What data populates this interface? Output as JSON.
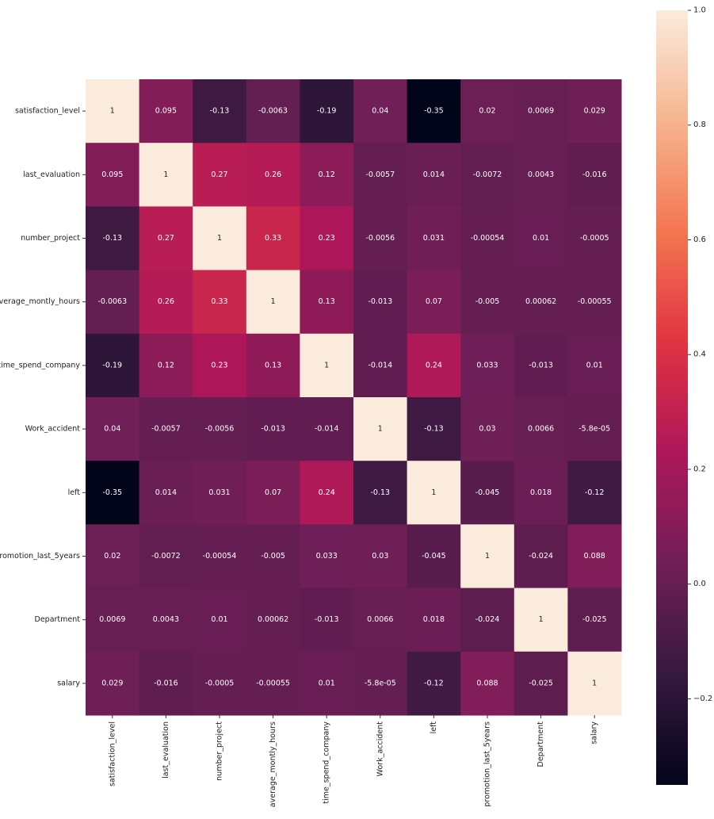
{
  "chart_data": {
    "type": "heatmap",
    "title": "",
    "labels": [
      "satisfaction_level",
      "last_evaluation",
      "number_project",
      "average_montly_hours",
      "time_spend_company",
      "Work_accident",
      "left",
      "promotion_last_5years",
      "Department",
      "salary"
    ],
    "values": [
      [
        1,
        0.095,
        -0.13,
        -0.0063,
        -0.19,
        0.04,
        -0.35,
        0.02,
        0.0069,
        0.029
      ],
      [
        0.095,
        1,
        0.27,
        0.26,
        0.12,
        -0.0057,
        0.014,
        -0.0072,
        0.0043,
        -0.016
      ],
      [
        -0.13,
        0.27,
        1,
        0.33,
        0.23,
        -0.0056,
        0.031,
        -0.00054,
        0.01,
        -0.0005
      ],
      [
        -0.0063,
        0.26,
        0.33,
        1,
        0.13,
        -0.013,
        0.07,
        -0.005,
        0.00062,
        -0.00055
      ],
      [
        -0.19,
        0.12,
        0.23,
        0.13,
        1,
        -0.014,
        0.24,
        0.033,
        -0.013,
        0.01
      ],
      [
        0.04,
        -0.0057,
        -0.0056,
        -0.013,
        -0.014,
        1,
        -0.13,
        0.03,
        0.0066,
        -5.8e-05
      ],
      [
        -0.35,
        0.014,
        0.031,
        0.07,
        0.24,
        -0.13,
        1,
        -0.045,
        0.018,
        -0.12
      ],
      [
        0.02,
        -0.0072,
        -0.00054,
        -0.005,
        0.033,
        0.03,
        -0.045,
        1,
        -0.024,
        0.088
      ],
      [
        0.0069,
        0.0043,
        0.01,
        0.00062,
        -0.013,
        0.0066,
        0.018,
        -0.024,
        1,
        -0.025
      ],
      [
        0.029,
        -0.016,
        -0.0005,
        -0.00055,
        0.01,
        -5.8e-05,
        -0.12,
        0.088,
        -0.025,
        1
      ]
    ],
    "annotations": [
      [
        "1",
        "0.095",
        "-0.13",
        "-0.0063",
        "-0.19",
        "0.04",
        "-0.35",
        "0.02",
        "0.0069",
        "0.029"
      ],
      [
        "0.095",
        "1",
        "0.27",
        "0.26",
        "0.12",
        "-0.0057",
        "0.014",
        "-0.0072",
        "0.0043",
        "-0.016"
      ],
      [
        "-0.13",
        "0.27",
        "1",
        "0.33",
        "0.23",
        "-0.0056",
        "0.031",
        "-0.00054",
        "0.01",
        "-0.0005"
      ],
      [
        "-0.0063",
        "0.26",
        "0.33",
        "1",
        "0.13",
        "-0.013",
        "0.07",
        "-0.005",
        "0.00062",
        "-0.00055"
      ],
      [
        "-0.19",
        "0.12",
        "0.23",
        "0.13",
        "1",
        "-0.014",
        "0.24",
        "0.033",
        "-0.013",
        "0.01"
      ],
      [
        "0.04",
        "-0.0057",
        "-0.0056",
        "-0.013",
        "-0.014",
        "1",
        "-0.13",
        "0.03",
        "0.0066",
        "-5.8e-05"
      ],
      [
        "-0.35",
        "0.014",
        "0.031",
        "0.07",
        "0.24",
        "-0.13",
        "1",
        "-0.045",
        "0.018",
        "-0.12"
      ],
      [
        "0.02",
        "-0.0072",
        "-0.00054",
        "-0.005",
        "0.033",
        "0.03",
        "-0.045",
        "1",
        "-0.024",
        "0.088"
      ],
      [
        "0.0069",
        "0.0043",
        "0.01",
        "0.00062",
        "-0.013",
        "0.0066",
        "0.018",
        "-0.024",
        "1",
        "-0.025"
      ],
      [
        "0.029",
        "-0.016",
        "-0.0005",
        "-0.00055",
        "0.01",
        "-5.8e-05",
        "-0.12",
        "0.088",
        "-0.025",
        "1"
      ]
    ],
    "colorbar": {
      "range": [
        -0.35,
        1.0
      ],
      "ticks": [
        1.0,
        0.8,
        0.6,
        0.4,
        0.2,
        0.0,
        -0.2
      ],
      "tick_labels": [
        "1.0",
        "0.8",
        "0.6",
        "0.4",
        "0.2",
        "0.0",
        "−0.2"
      ]
    },
    "colormap": "rocket",
    "colormap_stops": [
      "#03051a",
      "#36193e",
      "#701f57",
      "#ad1759",
      "#e13342",
      "#f37651",
      "#f6b48f",
      "#faebdd"
    ],
    "xlabel": "",
    "ylabel": ""
  }
}
